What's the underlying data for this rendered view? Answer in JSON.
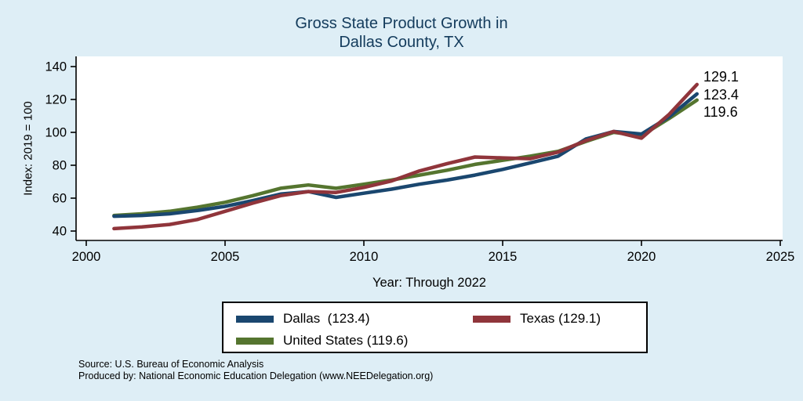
{
  "title": {
    "line1": "Gross State Product Growth in",
    "line2": "Dallas County, TX"
  },
  "chart_data": {
    "type": "line",
    "title": "Gross State Product Growth in Dallas County, TX",
    "xlabel": "Year: Through 2022",
    "ylabel": "Index: 2019 = 100",
    "xlim": [
      2000,
      2025
    ],
    "ylim": [
      40,
      140
    ],
    "x_ticks": [
      2000,
      2005,
      2010,
      2015,
      2020,
      2025
    ],
    "y_ticks": [
      40,
      60,
      80,
      100,
      120,
      140
    ],
    "grid": false,
    "legend_position": "bottom",
    "x": [
      2001,
      2002,
      2003,
      2004,
      2005,
      2006,
      2007,
      2008,
      2009,
      2010,
      2011,
      2012,
      2013,
      2014,
      2015,
      2016,
      2017,
      2018,
      2019,
      2020,
      2021,
      2022
    ],
    "series": [
      {
        "name": "Dallas",
        "legend_label": "Dallas  (123.4)",
        "end_label": "123.4",
        "final_value": 123.4,
        "color": "#1a476f",
        "values": [
          49,
          49.5,
          50.5,
          52.5,
          55,
          58.5,
          62.5,
          64,
          60.5,
          63,
          65.5,
          68.5,
          71,
          74,
          77.5,
          81.5,
          85.5,
          96,
          100.5,
          99,
          109.5,
          123.4
        ]
      },
      {
        "name": "Texas",
        "legend_label": "Texas (129.1)",
        "end_label": "129.1",
        "final_value": 129.1,
        "color": "#90353b",
        "values": [
          41.5,
          42.5,
          44,
          47,
          52,
          57,
          61.5,
          64,
          63.5,
          66.5,
          70.5,
          76.5,
          81,
          85,
          84.5,
          84,
          88,
          95,
          100.5,
          96.5,
          111,
          129.1
        ]
      },
      {
        "name": "United States",
        "legend_label": "United States (119.6)",
        "end_label": "119.6",
        "final_value": 119.6,
        "color": "#55752f",
        "values": [
          49.5,
          50.5,
          52,
          54.5,
          57.5,
          61.5,
          66,
          68,
          66,
          68.5,
          71,
          74,
          77,
          80.5,
          83,
          85.5,
          88.5,
          94.5,
          100,
          98,
          108.5,
          119.6
        ]
      }
    ]
  },
  "footer": {
    "source": "Source: U.S. Bureau of Economic Analysis",
    "produced_by": "Produced by: National Economic Education Delegation (www.NEEDelegation.org)"
  },
  "colors": {
    "background": "#deeef6",
    "plot_bg": "#ffffff",
    "axis": "#000000",
    "title": "#133b5c"
  }
}
